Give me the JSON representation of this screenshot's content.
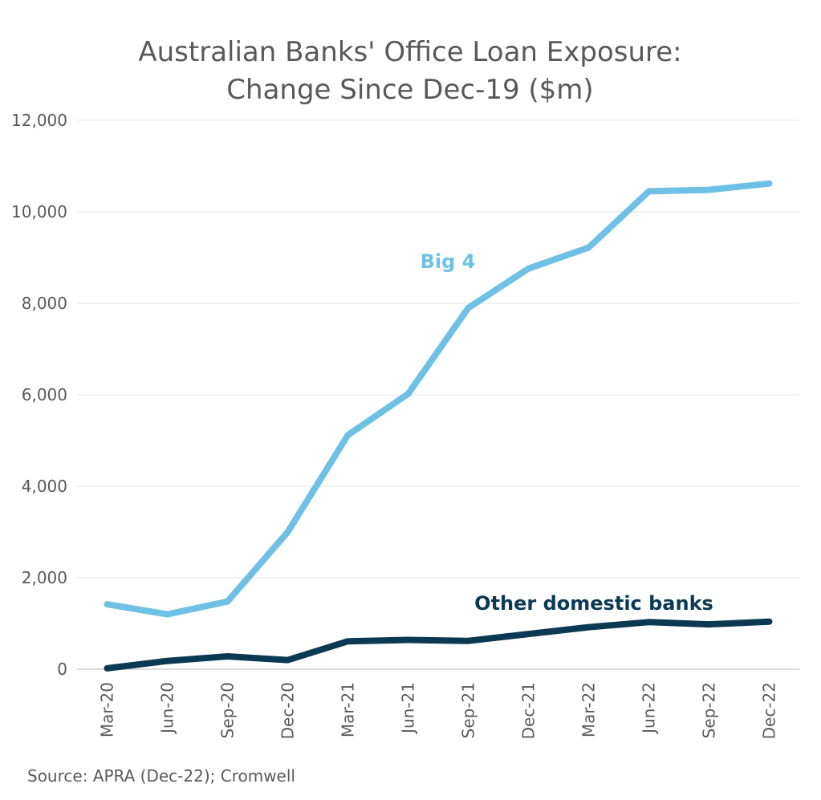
{
  "chart_data": {
    "type": "line",
    "title_line1": "Australian Banks' Office Loan Exposure:",
    "title_line2": "Change Since Dec-19 ($m)",
    "categories": [
      "Mar-20",
      "Jun-20",
      "Sep-20",
      "Dec-20",
      "Mar-21",
      "Jun-21",
      "Sep-21",
      "Dec-21",
      "Mar-22",
      "Jun-22",
      "Sep-22",
      "Dec-22"
    ],
    "y_ticks": [
      "0",
      "2,000",
      "4,000",
      "6,000",
      "8,000",
      "10,000",
      "12,000"
    ],
    "ylim": [
      0,
      12000
    ],
    "grid": true,
    "series": [
      {
        "name": "Big 4",
        "color": "#6EC1E4",
        "values": [
          1420,
          1200,
          1480,
          3000,
          5120,
          6020,
          7900,
          8760,
          9220,
          10450,
          10480,
          10620
        ]
      },
      {
        "name": "Other domestic banks",
        "color": "#0B3954",
        "values": [
          20,
          180,
          280,
          200,
          610,
          640,
          620,
          770,
          920,
          1030,
          980,
          1040
        ]
      }
    ]
  },
  "source": "Source: APRA (Dec-22); Cromwell"
}
